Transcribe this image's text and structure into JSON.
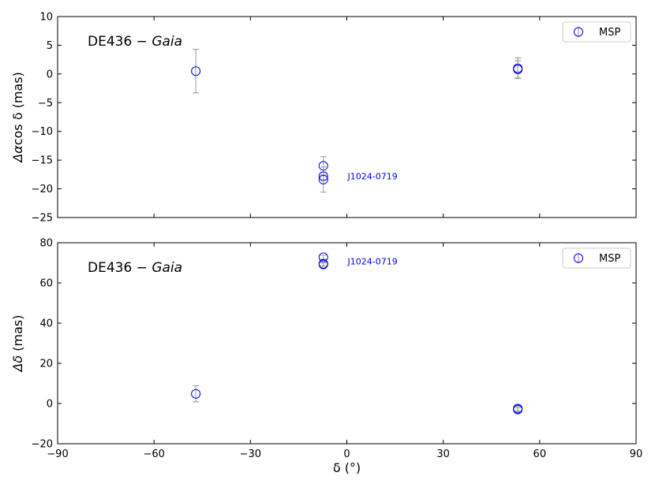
{
  "chart_data": [
    {
      "type": "scatter",
      "panel": "top",
      "title_main": "DE436 − ",
      "title_italic": "Gaia",
      "ylabel_symbol": "Δα",
      "ylabel_rest": "cos δ (mas)",
      "xlim": [
        -90,
        90
      ],
      "ylim": [
        -25,
        10
      ],
      "yticks": [
        -25,
        -20,
        -15,
        -10,
        -5,
        0,
        5,
        10
      ],
      "ytick_labels": [
        "−25",
        "−20",
        "−15",
        "−10",
        "−5",
        "0",
        "5",
        "10"
      ],
      "grid": false,
      "legend": {
        "label": "MSP",
        "placement": "top-right"
      },
      "marker_color": "#0000ee",
      "errorbar_color": "#999999",
      "annotation": {
        "text": "J1024-0719",
        "x": 0,
        "y": -17.8,
        "color": "#0000ee"
      },
      "points": [
        {
          "x": -47,
          "y": 0.5,
          "err": 3.8
        },
        {
          "x": -7.3,
          "y": -16.0,
          "err": 1.6
        },
        {
          "x": -7.3,
          "y": -17.8,
          "err": 0.7
        },
        {
          "x": -7.3,
          "y": -18.4,
          "err": 2.2
        },
        {
          "x": 53.2,
          "y": 1.0,
          "err": 1.8
        },
        {
          "x": 53.2,
          "y": 0.8,
          "err": 1.5
        }
      ]
    },
    {
      "type": "scatter",
      "panel": "bottom",
      "title_main": "DE436 − ",
      "title_italic": "Gaia",
      "ylabel_symbol": "Δδ",
      "ylabel_rest": " (mas)",
      "xlim": [
        -90,
        90
      ],
      "ylim": [
        -20,
        80
      ],
      "yticks": [
        -20,
        0,
        20,
        40,
        60,
        80
      ],
      "ytick_labels": [
        "−20",
        "0",
        "20",
        "40",
        "60",
        "80"
      ],
      "xticks": [
        -90,
        -60,
        -30,
        0,
        30,
        60,
        90
      ],
      "xtick_labels": [
        "−90",
        "−60",
        "−30",
        "0",
        "30",
        "60",
        "90"
      ],
      "xlabel": "δ (°)",
      "grid": false,
      "legend": {
        "label": "MSP",
        "placement": "top-right"
      },
      "marker_color": "#0000ee",
      "errorbar_color": "#999999",
      "annotation": {
        "text": "J1024-0719",
        "x": 0,
        "y": 70.8,
        "color": "#0000ee"
      },
      "points": [
        {
          "x": -47,
          "y": 4.8,
          "err": 4.0
        },
        {
          "x": -7.3,
          "y": 72.8,
          "err": 1.0
        },
        {
          "x": -7.3,
          "y": 69.5,
          "err": 1.0
        },
        {
          "x": -7.3,
          "y": 69.2,
          "err": 0.8
        },
        {
          "x": 53.2,
          "y": -2.5,
          "err": 1.2
        },
        {
          "x": 53.2,
          "y": -3.0,
          "err": 1.0
        }
      ]
    }
  ]
}
